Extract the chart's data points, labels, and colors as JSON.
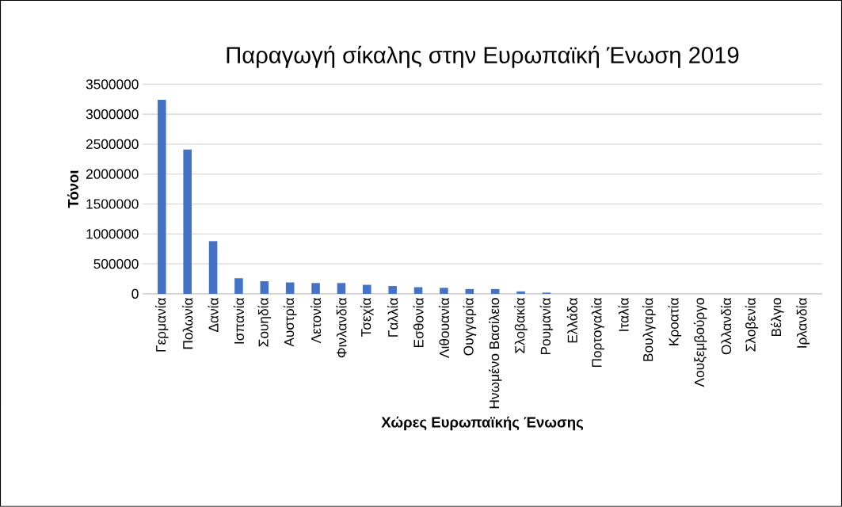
{
  "chart_data": {
    "type": "bar",
    "title": "Παραγωγή σίκαλης στην Ευρωπαϊκή Ένωση 2019",
    "xlabel": "Χώρες Ευρωπαϊκής Ένωσης",
    "ylabel": "Τόνοι",
    "categories": [
      "Γερμανία",
      "Πολωνία",
      "Δανία",
      "Ισπανία",
      "Σουηδία",
      "Αυστρία",
      "Λετονία",
      "Φινλανδία",
      "Τσεχία",
      "Γαλλία",
      "Εσθονία",
      "Λιθουανία",
      "Ουγγαρία",
      "Ηνωμένο Βασίλειο",
      "Σλοβακία",
      "Ρουμανία",
      "Ελλάδα",
      "Πορτογαλία",
      "Ιταλία",
      "Βουλγαρία",
      "Κροατία",
      "Λουξεμβούργο",
      "Ολλανδία",
      "Σλοβενία",
      "Βέλγιο",
      "Ιρλανδία"
    ],
    "values": [
      3240000,
      2410000,
      880000,
      260000,
      210000,
      190000,
      180000,
      180000,
      150000,
      130000,
      110000,
      100000,
      80000,
      80000,
      40000,
      20000,
      null,
      null,
      null,
      null,
      null,
      0,
      0,
      0,
      0,
      0
    ],
    "color": "#4472c4",
    "ylim": [
      0,
      3500000
    ],
    "yticks": [
      0,
      500000,
      1000000,
      1500000,
      2000000,
      2500000,
      3000000,
      3500000
    ],
    "grid": "y"
  }
}
